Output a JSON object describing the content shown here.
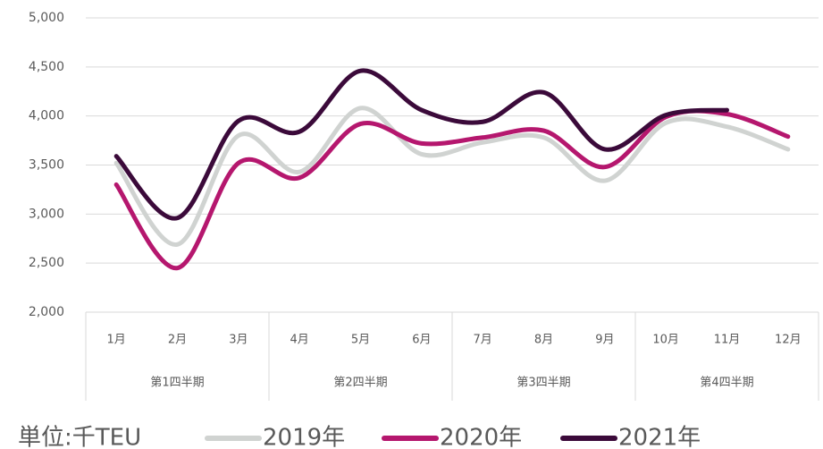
{
  "chart_data": {
    "type": "line",
    "categories": [
      "1月",
      "2月",
      "3月",
      "4月",
      "5月",
      "6月",
      "7月",
      "8月",
      "9月",
      "10月",
      "11月",
      "12月"
    ],
    "groups": [
      "第1四半期",
      "第2四半期",
      "第3四半期",
      "第4四半期"
    ],
    "unit_label": "単位:千TEU",
    "series": [
      {
        "name": "2019年",
        "color": "#d0d3d1",
        "values": [
          3520,
          2690,
          3800,
          3430,
          4080,
          3610,
          3730,
          3780,
          3340,
          3930,
          3890,
          3660
        ]
      },
      {
        "name": "2020年",
        "color": "#b5176e",
        "values": [
          3300,
          2450,
          3520,
          3370,
          3920,
          3720,
          3780,
          3850,
          3480,
          3990,
          4020,
          3790
        ]
      },
      {
        "name": "2021年",
        "color": "#3b0a3a",
        "values": [
          3590,
          2960,
          3950,
          3840,
          4460,
          4060,
          3940,
          4240,
          3660,
          4010,
          4060,
          null
        ]
      }
    ],
    "ylim": [
      2000,
      5000
    ],
    "yticks": [
      {
        "value": 2000,
        "label": "2,000"
      },
      {
        "value": 2500,
        "label": "2,500"
      },
      {
        "value": 3000,
        "label": "3,000"
      },
      {
        "value": 3500,
        "label": "3,500"
      },
      {
        "value": 4000,
        "label": "4,000"
      },
      {
        "value": 4500,
        "label": "4,500"
      },
      {
        "value": 5000,
        "label": "5,000"
      }
    ],
    "grid": true
  }
}
